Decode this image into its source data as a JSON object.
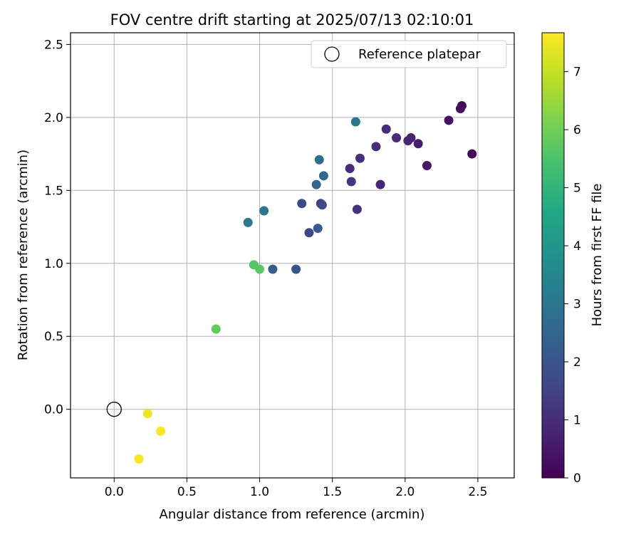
{
  "chart_data": {
    "type": "scatter",
    "title": "FOV centre drift starting at 2025/07/13 02:10:01",
    "xlabel": "Angular distance from reference (arcmin)",
    "ylabel": "Rotation from reference (arcmin)",
    "xlim": [
      -0.3,
      2.75
    ],
    "ylim": [
      -0.47,
      2.58
    ],
    "xticks": [
      0.0,
      0.5,
      1.0,
      1.5,
      2.0,
      2.5
    ],
    "xtick_labels": [
      "0.0",
      "0.5",
      "1.0",
      "1.5",
      "2.0",
      "2.5"
    ],
    "yticks": [
      0.0,
      0.5,
      1.0,
      1.5,
      2.0,
      2.5
    ],
    "ytick_labels": [
      "0.0",
      "0.5",
      "1.0",
      "1.5",
      "2.0",
      "2.5"
    ],
    "grid": true,
    "legend": {
      "placement": "top-right",
      "label": "Reference platepar"
    },
    "reference_point": {
      "x": 0.0,
      "y": 0.0
    },
    "colorbar": {
      "label": "Hours from first FF file",
      "colormap": "viridis",
      "range": [
        0,
        7.67
      ],
      "ticks": [
        0,
        1,
        2,
        3,
        4,
        5,
        6,
        7
      ],
      "tick_labels": [
        "0",
        "1",
        "2",
        "3",
        "4",
        "5",
        "6",
        "7"
      ]
    },
    "points": [
      {
        "x": 2.46,
        "y": 1.75,
        "c": 0.05
      },
      {
        "x": 2.39,
        "y": 2.08,
        "c": 0.15
      },
      {
        "x": 2.38,
        "y": 2.06,
        "c": 0.25
      },
      {
        "x": 2.3,
        "y": 1.98,
        "c": 0.35
      },
      {
        "x": 2.15,
        "y": 1.67,
        "c": 0.5
      },
      {
        "x": 2.09,
        "y": 1.82,
        "c": 0.6
      },
      {
        "x": 2.04,
        "y": 1.86,
        "c": 0.7
      },
      {
        "x": 2.02,
        "y": 1.84,
        "c": 0.8
      },
      {
        "x": 1.94,
        "y": 1.86,
        "c": 0.9
      },
      {
        "x": 1.87,
        "y": 1.92,
        "c": 0.95
      },
      {
        "x": 1.8,
        "y": 1.8,
        "c": 1.0
      },
      {
        "x": 1.83,
        "y": 1.54,
        "c": 0.8
      },
      {
        "x": 1.69,
        "y": 1.72,
        "c": 1.05
      },
      {
        "x": 1.62,
        "y": 1.65,
        "c": 0.9
      },
      {
        "x": 1.63,
        "y": 1.56,
        "c": 1.2
      },
      {
        "x": 1.67,
        "y": 1.37,
        "c": 1.1
      },
      {
        "x": 1.42,
        "y": 1.41,
        "c": 1.4
      },
      {
        "x": 1.43,
        "y": 1.4,
        "c": 1.6
      },
      {
        "x": 1.29,
        "y": 1.41,
        "c": 1.7
      },
      {
        "x": 1.34,
        "y": 1.21,
        "c": 1.6
      },
      {
        "x": 1.4,
        "y": 1.24,
        "c": 2.2
      },
      {
        "x": 1.25,
        "y": 0.96,
        "c": 2.0
      },
      {
        "x": 1.09,
        "y": 0.96,
        "c": 2.2
      },
      {
        "x": 1.39,
        "y": 1.54,
        "c": 2.5
      },
      {
        "x": 1.41,
        "y": 1.71,
        "c": 2.8
      },
      {
        "x": 1.44,
        "y": 1.6,
        "c": 2.6
      },
      {
        "x": 1.66,
        "y": 1.97,
        "c": 3.0
      },
      {
        "x": 1.03,
        "y": 1.36,
        "c": 2.9
      },
      {
        "x": 0.92,
        "y": 1.28,
        "c": 3.1
      },
      {
        "x": 0.96,
        "y": 0.99,
        "c": 5.6
      },
      {
        "x": 1.0,
        "y": 0.96,
        "c": 5.7
      },
      {
        "x": 0.7,
        "y": 0.55,
        "c": 5.8
      },
      {
        "x": 0.23,
        "y": -0.03,
        "c": 7.5
      },
      {
        "x": 0.32,
        "y": -0.15,
        "c": 7.6
      },
      {
        "x": 0.17,
        "y": -0.34,
        "c": 7.6
      }
    ]
  }
}
